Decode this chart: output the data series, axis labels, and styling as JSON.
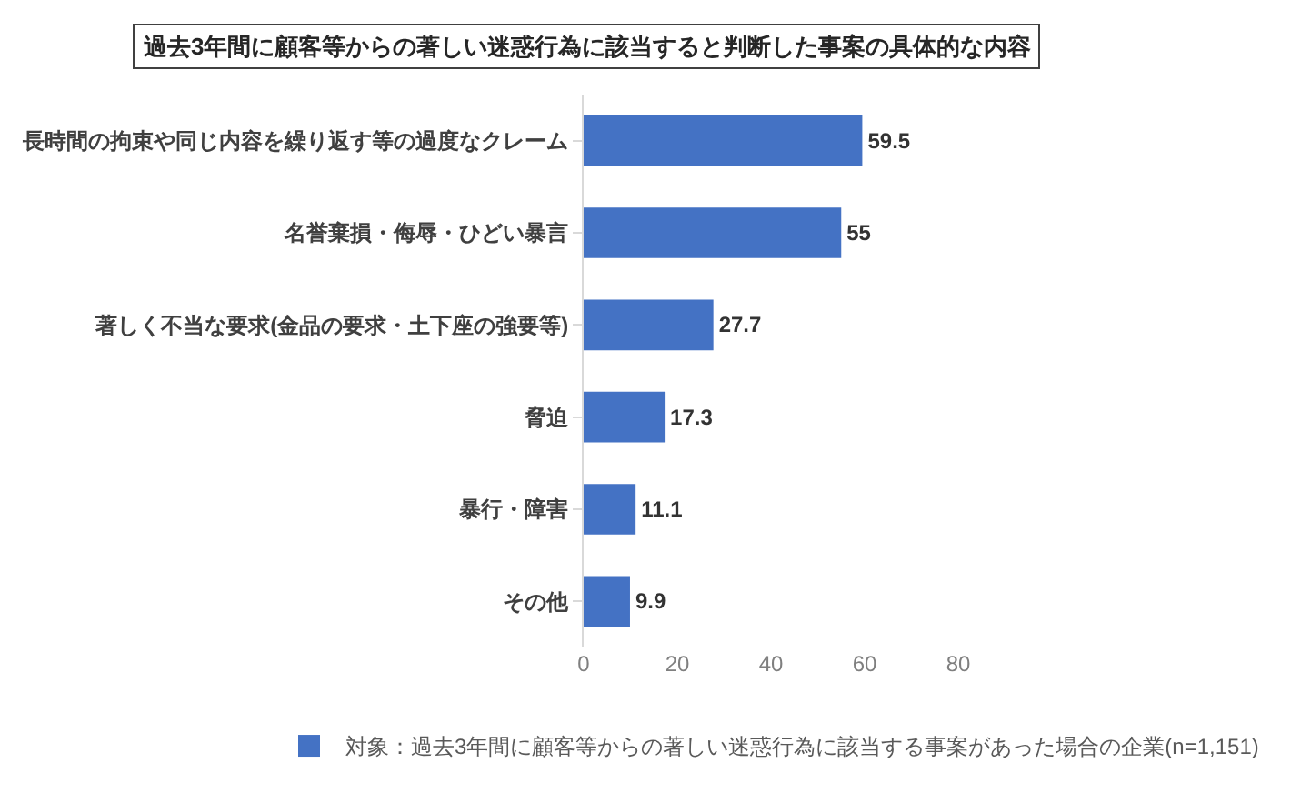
{
  "chart_data": {
    "type": "bar",
    "orientation": "horizontal",
    "title": "過去3年間に顧客等からの著しい迷惑行為に該当すると判断した事案の具体的な内容",
    "categories": [
      "長時間の拘束や同じ内容を繰り返す等の過度なクレーム",
      "名誉棄損・侮辱・ひどい暴言",
      "著しく不当な要求(金品の要求・土下座の強要等)",
      "脅迫",
      "暴行・障害",
      "その他"
    ],
    "series": [
      {
        "name": "対象：過去3年間に顧客等からの著しい迷惑行為に該当する事案があった場合の企業(n=1,151)",
        "color": "#4472c4",
        "values": [
          59.5,
          55,
          27.7,
          17.3,
          11.1,
          9.9
        ]
      }
    ],
    "xlim": [
      0,
      80
    ],
    "xticks": [
      0,
      20,
      40,
      60,
      80
    ],
    "data_labels": true,
    "grid": false,
    "legend": "bottom"
  }
}
